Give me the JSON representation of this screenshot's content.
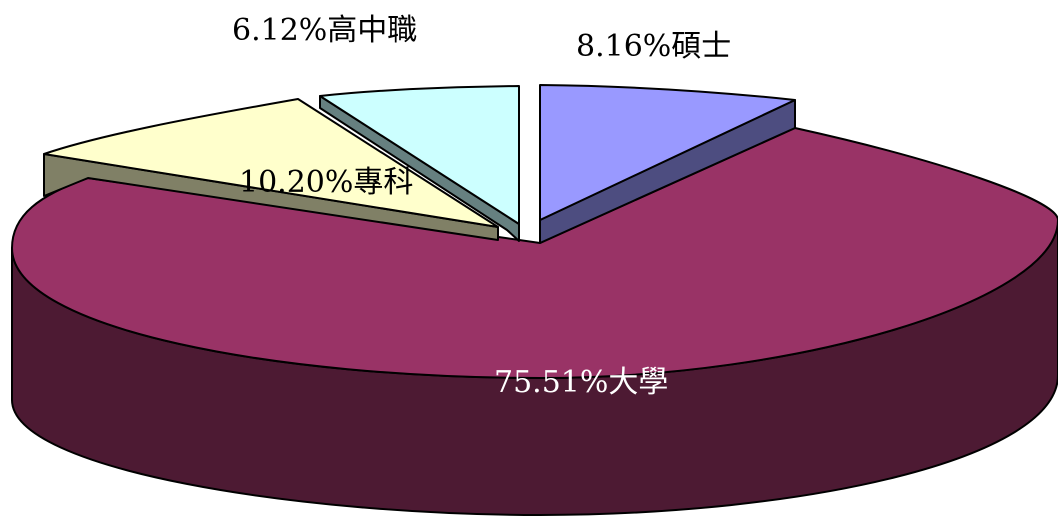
{
  "chart_data": {
    "type": "pie",
    "title": "",
    "style": "3d-exploded",
    "slices": [
      {
        "label": "大學",
        "value": 75.51,
        "display_label": "75.51%大學",
        "top_color": "#993366",
        "side_color": "#4d1a33",
        "label_color": "#ffffff"
      },
      {
        "label": "專科",
        "value": 10.2,
        "display_label": "10.20%專科",
        "top_color": "#ffffcc",
        "side_color": "#808066",
        "label_color": "#000000"
      },
      {
        "label": "高中職",
        "value": 6.12,
        "display_label": "6.12%高中職",
        "top_color": "#ccffff",
        "side_color": "#668080",
        "label_color": "#000000"
      },
      {
        "label": "碩士",
        "value": 8.16,
        "display_label": "8.16%碩士",
        "top_color": "#9999ff",
        "side_color": "#4d4d80",
        "label_color": "#000000"
      }
    ]
  }
}
